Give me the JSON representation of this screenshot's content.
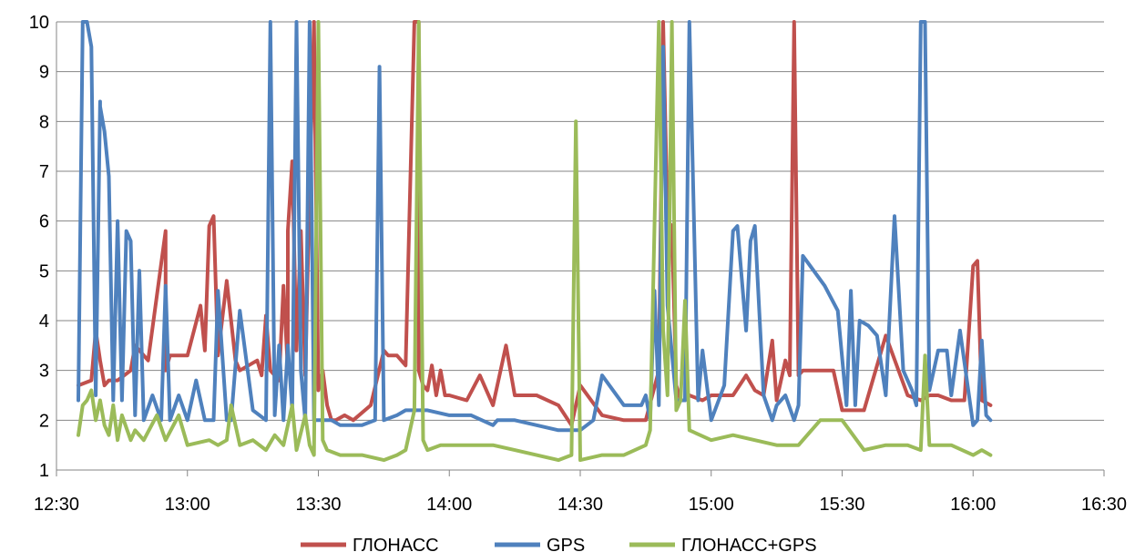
{
  "chart_data": {
    "type": "line",
    "x_ticks": [
      "12:30",
      "13:00",
      "13:30",
      "14:00",
      "14:30",
      "15:00",
      "15:30",
      "16:00",
      "16:30"
    ],
    "y_ticks": [
      "1",
      "2",
      "3",
      "4",
      "5",
      "6",
      "7",
      "8",
      "9",
      "10"
    ],
    "xlim": [
      "12:30",
      "16:30"
    ],
    "ylim": [
      1,
      10
    ],
    "grid": "horizontal",
    "legend_position": "bottom",
    "colors": {
      "ГЛОНАСС": "#c0504d",
      "GPS": "#4f81bd",
      "ГЛОНАСС+GPS": "#9bbb59",
      "grid": "#868686",
      "axis": "#868686"
    },
    "series": [
      {
        "name": "ГЛОНАСС",
        "x": [
          "12:35",
          "12:38",
          "12:39",
          "12:40",
          "12:41",
          "12:42",
          "12:44",
          "12:47",
          "12:48",
          "12:51",
          "12:55",
          "12:55",
          "12:56",
          "12:58",
          "13:00",
          "13:03",
          "13:04",
          "13:05",
          "13:06",
          "13:07",
          "13:09",
          "13:11",
          "13:12",
          "13:16",
          "13:17",
          "13:18",
          "13:19",
          "13:21",
          "13:22",
          "13:23",
          "13:23",
          "13:24",
          "13:25",
          "13:26",
          "13:27",
          "13:28",
          "13:29",
          "13:30",
          "13:31",
          "13:32",
          "13:33",
          "13:34",
          "13:36",
          "13:38",
          "13:42",
          "13:45",
          "13:46",
          "13:48",
          "13:50",
          "13:52",
          "13:53",
          "13:53",
          "13:54",
          "13:55",
          "13:56",
          "13:57",
          "13:58",
          "13:59",
          "14:00",
          "14:04",
          "14:07",
          "14:10",
          "14:13",
          "14:15",
          "14:20",
          "14:25",
          "14:28",
          "14:30",
          "14:35",
          "14:40",
          "14:45",
          "14:48",
          "14:49",
          "14:50",
          "14:51",
          "14:52",
          "14:53",
          "14:54",
          "14:55",
          "14:58",
          "15:00",
          "15:05",
          "15:08",
          "15:10",
          "15:12",
          "15:14",
          "15:15",
          "15:17",
          "15:18",
          "15:19",
          "15:20",
          "15:21",
          "15:22",
          "15:25",
          "15:28",
          "15:30",
          "15:35",
          "15:40",
          "15:45",
          "15:48",
          "15:50",
          "15:52",
          "15:55",
          "15:58",
          "16:00",
          "16:01",
          "16:02",
          "16:04"
        ],
        "y": [
          2.7,
          2.8,
          3.8,
          3.2,
          2.7,
          2.8,
          2.8,
          3.0,
          3.5,
          3.2,
          5.8,
          3.0,
          3.3,
          3.3,
          3.3,
          4.3,
          3.4,
          5.9,
          6.1,
          3.3,
          4.8,
          3.2,
          3.0,
          3.2,
          2.9,
          4.1,
          3.0,
          2.8,
          4.7,
          3.0,
          5.8,
          7.2,
          3.4,
          5.8,
          2.9,
          6.6,
          10,
          2.6,
          3.0,
          2.3,
          2.0,
          2.0,
          2.1,
          2.0,
          2.3,
          3.4,
          3.3,
          3.3,
          3.1,
          10,
          10,
          3.0,
          2.7,
          2.6,
          3.1,
          2.5,
          3.0,
          2.5,
          2.5,
          2.4,
          2.9,
          2.3,
          3.5,
          2.5,
          2.5,
          2.3,
          1.9,
          2.7,
          2.1,
          2.0,
          2.0,
          3.0,
          10,
          6.0,
          5.9,
          2.7,
          2.4,
          2.4,
          2.5,
          2.4,
          2.5,
          2.5,
          2.9,
          2.6,
          2.5,
          3.6,
          2.4,
          3.2,
          2.9,
          10,
          2.9,
          3.0,
          3.0,
          3.0,
          3.0,
          2.2,
          2.2,
          3.7,
          2.5,
          2.4,
          2.5,
          2.5,
          2.4,
          2.4,
          5.1,
          5.2,
          2.4,
          2.3
        ]
      },
      {
        "name": "GPS",
        "x": [
          "12:35",
          "12:36",
          "12:37",
          "12:38",
          "12:39",
          "12:40",
          "12:40",
          "12:41",
          "12:42",
          "12:43",
          "12:44",
          "12:45",
          "12:46",
          "12:47",
          "12:48",
          "12:49",
          "12:50",
          "12:52",
          "12:54",
          "12:55",
          "12:56",
          "12:58",
          "13:00",
          "13:02",
          "13:04",
          "13:06",
          "13:07",
          "13:09",
          "13:10",
          "13:12",
          "13:15",
          "13:18",
          "13:19",
          "13:20",
          "13:21",
          "13:22",
          "13:23",
          "13:24",
          "13:25",
          "13:26",
          "13:27",
          "13:28",
          "13:29",
          "13:30",
          "13:31",
          "13:32",
          "13:33",
          "13:35",
          "13:38",
          "13:40",
          "13:43",
          "13:44",
          "13:45",
          "13:48",
          "13:50",
          "13:55",
          "14:00",
          "14:05",
          "14:10",
          "14:11",
          "14:15",
          "14:20",
          "14:25",
          "14:30",
          "14:33",
          "14:35",
          "14:40",
          "14:44",
          "14:45",
          "14:46",
          "14:47",
          "14:48",
          "14:49",
          "14:50",
          "14:52",
          "14:54",
          "14:55",
          "14:57",
          "14:58",
          "15:00",
          "15:03",
          "15:05",
          "15:06",
          "15:08",
          "15:09",
          "15:10",
          "15:12",
          "15:14",
          "15:15",
          "15:17",
          "15:19",
          "15:20",
          "15:21",
          "15:26",
          "15:29",
          "15:31",
          "15:32",
          "15:33",
          "15:34",
          "15:36",
          "15:38",
          "15:40",
          "15:42",
          "15:44",
          "15:46",
          "15:47",
          "15:48",
          "15:49",
          "15:50",
          "15:52",
          "15:54",
          "15:55",
          "15:57",
          "16:00",
          "16:01",
          "16:02",
          "16:03",
          "16:04"
        ],
        "y": [
          2.4,
          10,
          10,
          9.5,
          2.5,
          8.4,
          8.3,
          7.8,
          6.9,
          2.4,
          6.0,
          2.4,
          5.8,
          5.6,
          2.1,
          5.0,
          2.0,
          2.5,
          2.0,
          4.7,
          2.0,
          2.5,
          2.0,
          2.8,
          2.0,
          2.0,
          4.6,
          2.0,
          2.0,
          4.2,
          2.2,
          2.0,
          10,
          2.1,
          3.5,
          2.0,
          3.5,
          2.2,
          10,
          3.0,
          2.0,
          10,
          2.0,
          2.0,
          2.0,
          2.0,
          2.0,
          1.9,
          1.9,
          1.9,
          2.0,
          9.1,
          2.0,
          2.1,
          2.2,
          2.2,
          2.1,
          2.1,
          1.9,
          2.0,
          2.0,
          1.9,
          1.8,
          1.8,
          2.0,
          2.9,
          2.3,
          2.3,
          2.5,
          2.0,
          4.6,
          2.3,
          9.5,
          4.3,
          2.4,
          2.4,
          10,
          2.4,
          3.4,
          2.0,
          2.7,
          5.8,
          5.9,
          3.8,
          5.6,
          5.9,
          2.5,
          2.0,
          2.3,
          2.5,
          2.0,
          2.3,
          5.3,
          4.7,
          4.2,
          2.3,
          4.6,
          2.3,
          4.0,
          3.9,
          3.7,
          2.5,
          6.1,
          3.0,
          2.6,
          2.3,
          10,
          10,
          2.6,
          3.4,
          3.4,
          2.5,
          3.8,
          1.9,
          2.0,
          3.6,
          2.1,
          2.0
        ]
      },
      {
        "name": "ГЛОНАСС+GPS",
        "x": [
          "12:35",
          "12:36",
          "12:37",
          "12:38",
          "12:39",
          "12:40",
          "12:41",
          "12:42",
          "12:43",
          "12:44",
          "12:45",
          "12:47",
          "12:48",
          "12:50",
          "12:53",
          "12:55",
          "12:58",
          "13:00",
          "13:05",
          "13:07",
          "13:09",
          "13:10",
          "13:12",
          "13:15",
          "13:18",
          "13:20",
          "13:22",
          "13:24",
          "13:25",
          "13:27",
          "13:28",
          "13:29",
          "13:30",
          "13:31",
          "13:32",
          "13:35",
          "13:40",
          "13:45",
          "13:48",
          "13:50",
          "13:52",
          "13:53",
          "13:53",
          "13:54",
          "13:55",
          "13:58",
          "14:00",
          "14:05",
          "14:10",
          "14:15",
          "14:20",
          "14:25",
          "14:28",
          "14:29",
          "14:30",
          "14:35",
          "14:40",
          "14:45",
          "14:46",
          "14:48",
          "14:49",
          "14:50",
          "14:51",
          "14:52",
          "14:53",
          "14:54",
          "14:55",
          "15:00",
          "15:05",
          "15:10",
          "15:15",
          "15:20",
          "15:25",
          "15:30",
          "15:35",
          "15:40",
          "15:45",
          "15:48",
          "15:49",
          "15:50",
          "15:55",
          "16:00",
          "16:02",
          "16:04"
        ],
        "y": [
          1.7,
          2.3,
          2.4,
          2.6,
          2.0,
          2.4,
          1.9,
          1.7,
          2.3,
          1.6,
          2.1,
          1.6,
          1.8,
          1.6,
          2.1,
          1.6,
          2.1,
          1.5,
          1.6,
          1.5,
          1.6,
          2.3,
          1.5,
          1.6,
          1.4,
          1.7,
          1.5,
          2.3,
          1.4,
          2.1,
          1.5,
          1.3,
          10,
          1.6,
          1.4,
          1.3,
          1.3,
          1.2,
          1.3,
          1.4,
          2.2,
          10,
          10,
          1.6,
          1.4,
          1.5,
          1.5,
          1.5,
          1.5,
          1.4,
          1.3,
          1.2,
          1.3,
          8.0,
          1.2,
          1.3,
          1.3,
          1.5,
          1.8,
          10,
          3.8,
          2.5,
          10,
          2.2,
          2.4,
          4.4,
          1.8,
          1.6,
          1.7,
          1.6,
          1.5,
          1.5,
          2.0,
          2.0,
          1.4,
          1.5,
          1.5,
          1.4,
          3.3,
          1.5,
          1.5,
          1.3,
          1.4,
          1.3
        ]
      }
    ]
  }
}
